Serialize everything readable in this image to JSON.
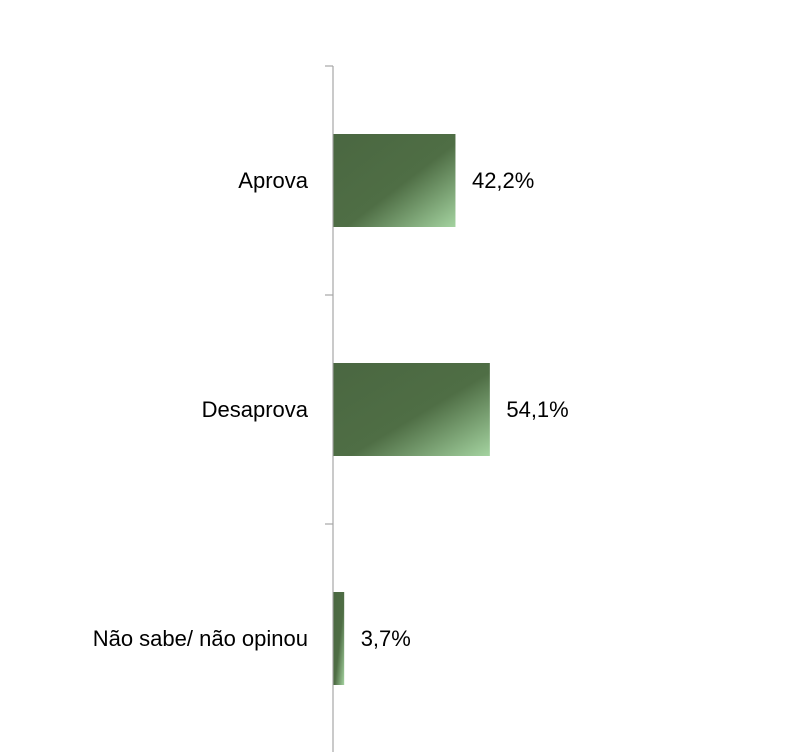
{
  "chart_data": {
    "type": "bar",
    "orientation": "horizontal",
    "categories": [
      "Aprova",
      "Desaprova",
      "Não sabe/ não opinou"
    ],
    "values": [
      42.2,
      54.1,
      3.7
    ],
    "value_labels": [
      "42,2%",
      "54,1%",
      "3,7%"
    ],
    "xlim": [
      0,
      100
    ],
    "grid": false,
    "legend": "none",
    "title": "",
    "xlabel": "",
    "ylabel": "",
    "colors": {
      "bar_dark": "#4a6741",
      "bar_mid": "#4f6e45",
      "bar_light": "#a4d3a0",
      "axis": "#a6a6a6"
    }
  }
}
